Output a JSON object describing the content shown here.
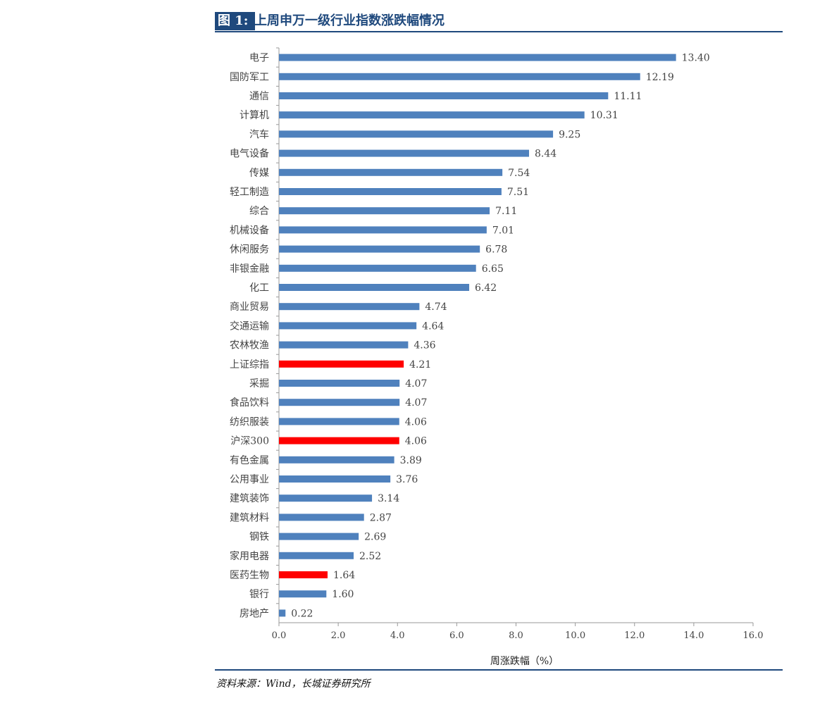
{
  "figure": {
    "number": "图 1:",
    "title": "上周申万一级行业指数涨跌幅情况",
    "source": "资料来源：Wind，长城证券研究所"
  },
  "colors": {
    "bar_default": "#4f81bd",
    "bar_highlight": "#ff0000",
    "header_blue": "#1f497d"
  },
  "chart_data": {
    "type": "bar",
    "orientation": "horizontal",
    "xlabel": "周涨跌幅（%）",
    "ylabel": "",
    "xlim": [
      0,
      16
    ],
    "xticks": [
      "0.0",
      "2.0",
      "4.0",
      "6.0",
      "8.0",
      "10.0",
      "12.0",
      "14.0",
      "16.0"
    ],
    "grid": false,
    "categories": [
      "电子",
      "国防军工",
      "通信",
      "计算机",
      "汽车",
      "电气设备",
      "传媒",
      "轻工制造",
      "综合",
      "机械设备",
      "休闲服务",
      "非银金融",
      "化工",
      "商业贸易",
      "交通运输",
      "农林牧渔",
      "上证综指",
      "采掘",
      "食品饮料",
      "纺织服装",
      "沪深300",
      "有色金属",
      "公用事业",
      "建筑装饰",
      "建筑材料",
      "钢铁",
      "家用电器",
      "医药生物",
      "银行",
      "房地产"
    ],
    "values": [
      13.4,
      12.19,
      11.11,
      10.31,
      9.25,
      8.44,
      7.54,
      7.51,
      7.11,
      7.01,
      6.78,
      6.65,
      6.42,
      4.74,
      4.64,
      4.36,
      4.21,
      4.07,
      4.07,
      4.06,
      4.06,
      3.89,
      3.76,
      3.14,
      2.87,
      2.69,
      2.52,
      1.64,
      1.6,
      0.22
    ],
    "value_labels": [
      "13.40",
      "12.19",
      "11.11",
      "10.31",
      "9.25",
      "8.44",
      "7.54",
      "7.51",
      "7.11",
      "7.01",
      "6.78",
      "6.65",
      "6.42",
      "4.74",
      "4.64",
      "4.36",
      "4.21",
      "4.07",
      "4.07",
      "4.06",
      "4.06",
      "3.89",
      "3.76",
      "3.14",
      "2.87",
      "2.69",
      "2.52",
      "1.64",
      "1.60",
      "0.22"
    ],
    "highlighted": [
      "上证综指",
      "沪深300",
      "医药生物"
    ]
  }
}
